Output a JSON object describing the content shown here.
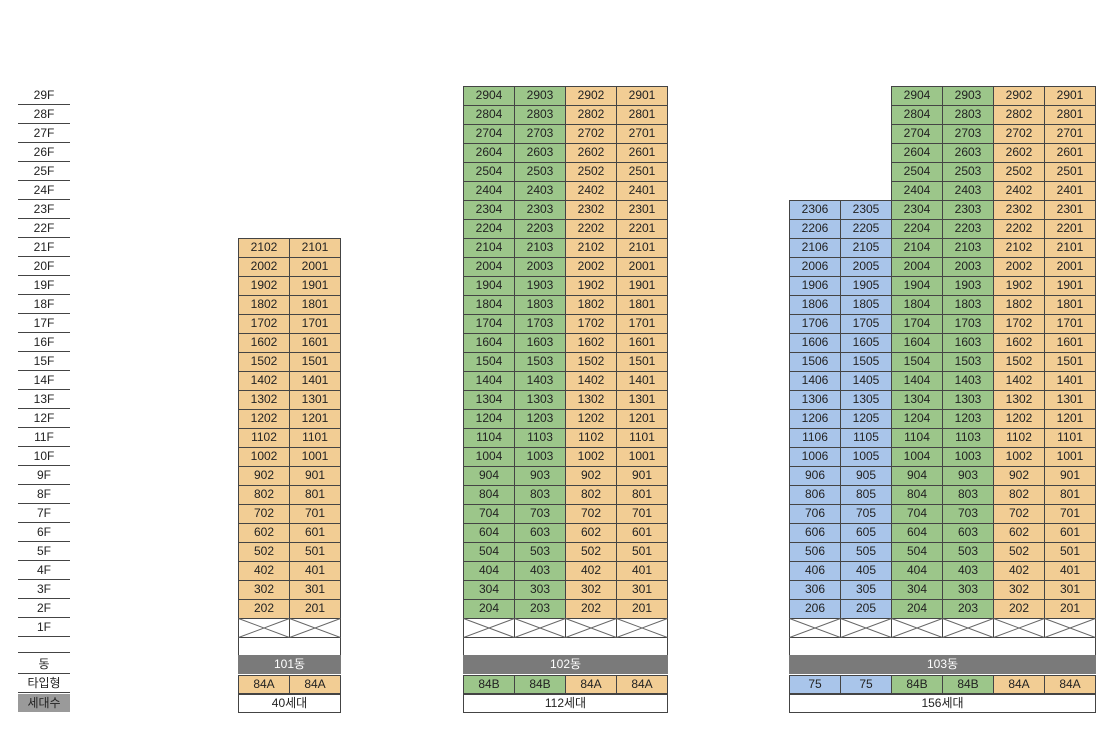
{
  "colors": {
    "orange": "#f2cd94",
    "green": "#9cc68a",
    "blue": "#a9c5ea",
    "dong_bar": "#7a7a7a"
  },
  "floors": [
    "29F",
    "28F",
    "27F",
    "26F",
    "25F",
    "24F",
    "23F",
    "22F",
    "21F",
    "20F",
    "19F",
    "18F",
    "17F",
    "16F",
    "15F",
    "14F",
    "13F",
    "12F",
    "11F",
    "10F",
    "9F",
    "8F",
    "7F",
    "6F",
    "5F",
    "4F",
    "3F",
    "2F",
    "1F"
  ],
  "legend": {
    "dong": "동",
    "type": "타입형",
    "households": "세대수"
  },
  "buildings": [
    {
      "name": "101동",
      "households": "40세대",
      "top_floor": 21,
      "lines": [
        "02",
        "01"
      ],
      "colors": [
        "orange",
        "orange"
      ],
      "types": [
        "84A",
        "84A"
      ],
      "type_colors": [
        "orange",
        "orange"
      ]
    },
    {
      "name": "102동",
      "households": "112세대",
      "top_floor": 29,
      "lines": [
        "04",
        "03",
        "02",
        "01"
      ],
      "colors": [
        "green",
        "green",
        "orange",
        "orange"
      ],
      "types": [
        "84B",
        "84B",
        "84A",
        "84A"
      ],
      "type_colors": [
        "green",
        "green",
        "orange",
        "orange"
      ]
    },
    {
      "name": "103동",
      "households": "156세대",
      "top_floor": 29,
      "lines": [
        "06",
        "05",
        "04",
        "03",
        "02",
        "01"
      ],
      "colors": [
        "blue",
        "blue",
        "green",
        "green",
        "orange",
        "orange"
      ],
      "line_top_floors": [
        23,
        23,
        29,
        29,
        29,
        29
      ],
      "types": [
        "75",
        "75",
        "84B",
        "84B",
        "84A",
        "84A"
      ],
      "type_colors": [
        "blue",
        "blue",
        "green",
        "green",
        "orange",
        "orange"
      ]
    }
  ]
}
